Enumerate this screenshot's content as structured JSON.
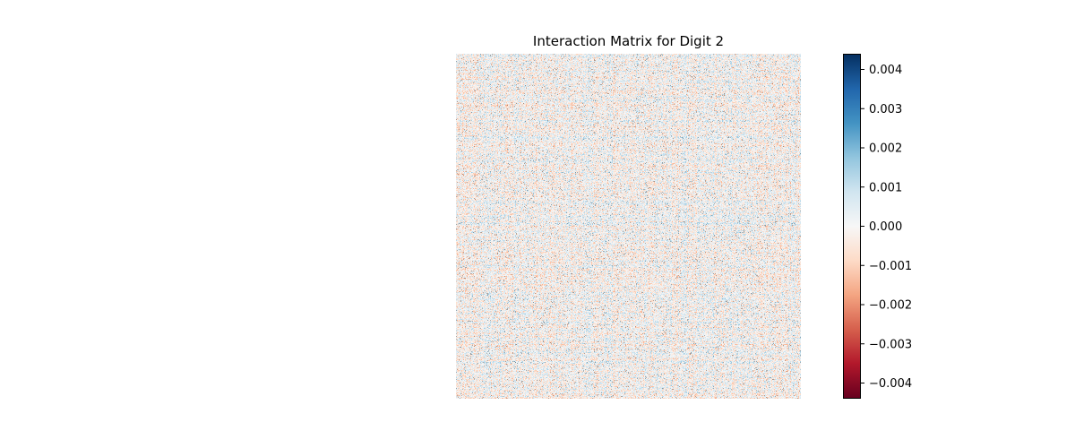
{
  "chart_data": {
    "type": "heatmap",
    "title": "Interaction Matrix for Digit 2",
    "xlabel": "",
    "ylabel": "",
    "grid": false,
    "axes_visible": false,
    "colormap": "RdBu",
    "colormap_stops": [
      "#67001f",
      "#b2182b",
      "#d6604d",
      "#f4a582",
      "#fddbc7",
      "#f7f7f7",
      "#d1e5f0",
      "#92c5de",
      "#4393c3",
      "#2166ac",
      "#053061"
    ],
    "value_range": [
      -0.0044,
      0.0044
    ],
    "matrix_size": [
      784,
      784
    ],
    "colorbar": {
      "position": "right",
      "ticks": [
        0.004,
        0.003,
        0.002,
        0.001,
        0.0,
        -0.001,
        -0.002,
        -0.003,
        -0.004
      ],
      "tick_labels": [
        "0.004",
        "0.003",
        "0.002",
        "0.001",
        "0.000",
        "−0.001",
        "−0.002",
        "−0.003",
        "−0.004"
      ]
    }
  }
}
